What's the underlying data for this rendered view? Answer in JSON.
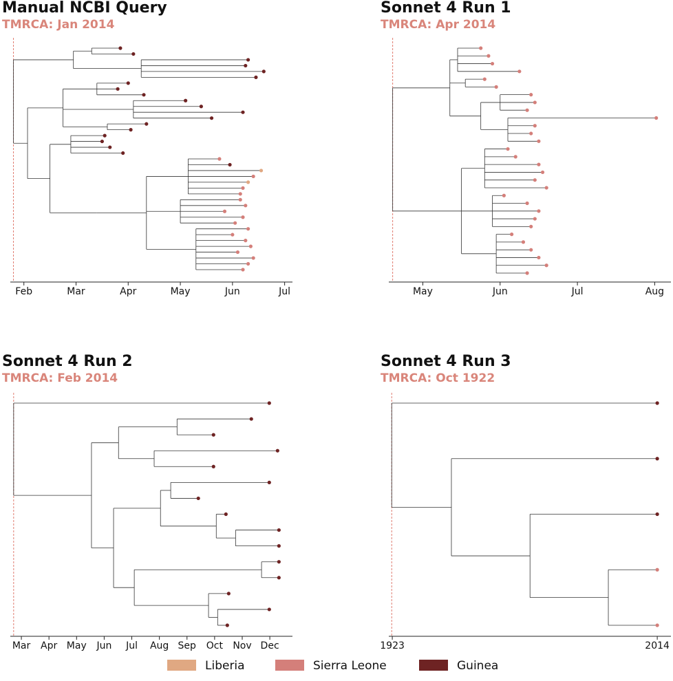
{
  "chart_data": [
    {
      "type": "tree",
      "title": "Manual NCBI Query",
      "subtitle": "TMRCA: Jan 2014",
      "xlim": [
        1.74,
        7.15
      ],
      "xticks": [
        {
          "value": 2,
          "label": "Feb"
        },
        {
          "value": 3,
          "label": "Mar"
        },
        {
          "value": 4,
          "label": "Apr"
        },
        {
          "value": 5,
          "label": "May"
        },
        {
          "value": 6,
          "label": "Jun"
        },
        {
          "value": 7,
          "label": "Jul"
        }
      ],
      "tree": {
        "t": 1.8,
        "c": [
          {
            "t": 2.95,
            "c": [
              {
                "t": 3.3,
                "c": [
                  {
                    "t": 3.85,
                    "g": "Guinea"
                  },
                  {
                    "t": 4.1,
                    "g": "Guinea"
                  }
                ]
              },
              {
                "t": 4.25,
                "c": [
                  {
                    "t": 6.3,
                    "g": "Guinea"
                  },
                  {
                    "t": 6.25,
                    "g": "Guinea"
                  },
                  {
                    "t": 6.6,
                    "g": "Guinea"
                  },
                  {
                    "t": 6.45,
                    "g": "Guinea"
                  }
                ]
              }
            ]
          },
          {
            "t": 2.07,
            "c": [
              {
                "t": 2.75,
                "c": [
                  {
                    "t": 3.4,
                    "c": [
                      {
                        "t": 4.0,
                        "g": "Guinea"
                      },
                      {
                        "t": 3.8,
                        "g": "Guinea"
                      },
                      {
                        "t": 4.3,
                        "g": "Guinea"
                      }
                    ]
                  },
                  {
                    "t": 4.1,
                    "c": [
                      {
                        "t": 5.1,
                        "g": "Guinea"
                      },
                      {
                        "t": 5.4,
                        "g": "Guinea"
                      },
                      {
                        "t": 6.2,
                        "g": "Guinea"
                      },
                      {
                        "t": 5.6,
                        "g": "Guinea"
                      }
                    ]
                  },
                  {
                    "t": 3.6,
                    "c": [
                      {
                        "t": 4.35,
                        "g": "Guinea"
                      },
                      {
                        "t": 4.05,
                        "g": "Guinea"
                      }
                    ]
                  }
                ]
              },
              {
                "t": 2.5,
                "c": [
                  {
                    "t": 2.9,
                    "c": [
                      {
                        "t": 3.55,
                        "g": "Guinea"
                      },
                      {
                        "t": 3.5,
                        "g": "Guinea"
                      },
                      {
                        "t": 3.65,
                        "g": "Guinea"
                      },
                      {
                        "t": 3.9,
                        "g": "Guinea"
                      }
                    ]
                  },
                  {
                    "t": 3.4,
                    "c": [
                      {
                        "t": 4.35,
                        "c": [
                          {
                            "t": 5.15,
                            "c": [
                              {
                                "t": 5.75,
                                "g": "Sierra Leone"
                              },
                              {
                                "t": 5.95,
                                "g": "Guinea"
                              },
                              {
                                "t": 6.55,
                                "g": "Liberia"
                              },
                              {
                                "t": 6.4,
                                "g": "Sierra Leone"
                              },
                              {
                                "t": 6.3,
                                "g": "Liberia"
                              },
                              {
                                "t": 6.2,
                                "g": "Sierra Leone"
                              },
                              {
                                "t": 6.15,
                                "g": "Sierra Leone"
                              }
                            ]
                          },
                          {
                            "t": 5.0,
                            "c": [
                              {
                                "t": 6.15,
                                "g": "Sierra Leone"
                              },
                              {
                                "t": 6.25,
                                "g": "Sierra Leone"
                              },
                              {
                                "t": 5.85,
                                "g": "Sierra Leone"
                              },
                              {
                                "t": 6.2,
                                "g": "Sierra Leone"
                              },
                              {
                                "t": 6.05,
                                "g": "Sierra Leone"
                              }
                            ]
                          },
                          {
                            "t": 5.3,
                            "c": [
                              {
                                "t": 6.3,
                                "g": "Sierra Leone"
                              },
                              {
                                "t": 6.0,
                                "g": "Sierra Leone"
                              },
                              {
                                "t": 6.25,
                                "g": "Sierra Leone"
                              },
                              {
                                "t": 6.35,
                                "g": "Sierra Leone"
                              },
                              {
                                "t": 6.1,
                                "g": "Sierra Leone"
                              },
                              {
                                "t": 6.4,
                                "g": "Sierra Leone"
                              },
                              {
                                "t": 6.3,
                                "g": "Sierra Leone"
                              },
                              {
                                "t": 6.2,
                                "g": "Sierra Leone"
                              }
                            ]
                          }
                        ]
                      }
                    ]
                  }
                ]
              }
            ]
          }
        ]
      }
    },
    {
      "type": "tree",
      "title": "Sonnet 4 Run 1",
      "subtitle": "TMRCA: Apr 2014",
      "xlim": [
        4.56,
        8.21
      ],
      "xticks": [
        {
          "value": 5,
          "label": "May"
        },
        {
          "value": 6,
          "label": "Jun"
        },
        {
          "value": 7,
          "label": "Jul"
        },
        {
          "value": 8,
          "label": "Aug"
        }
      ],
      "tree": {
        "t": 4.61,
        "c": [
          {
            "t": 5.35,
            "c": [
              {
                "t": 5.45,
                "c": [
                  {
                    "t": 5.75,
                    "g": "Sierra Leone"
                  },
                  {
                    "t": 5.85,
                    "g": "Sierra Leone"
                  },
                  {
                    "t": 5.9,
                    "g": "Sierra Leone"
                  },
                  {
                    "t": 6.25,
                    "g": "Sierra Leone"
                  }
                ]
              },
              {
                "t": 5.55,
                "c": [
                  {
                    "t": 5.8,
                    "g": "Sierra Leone"
                  },
                  {
                    "t": 5.95,
                    "g": "Sierra Leone"
                  }
                ]
              },
              {
                "t": 5.75,
                "c": [
                  {
                    "t": 6.0,
                    "c": [
                      {
                        "t": 6.4,
                        "g": "Sierra Leone"
                      },
                      {
                        "t": 6.45,
                        "g": "Sierra Leone"
                      },
                      {
                        "t": 6.35,
                        "g": "Sierra Leone"
                      }
                    ]
                  },
                  {
                    "t": 6.1,
                    "c": [
                      {
                        "t": 8.02,
                        "g": "Sierra Leone"
                      },
                      {
                        "t": 6.45,
                        "g": "Sierra Leone"
                      },
                      {
                        "t": 6.4,
                        "g": "Sierra Leone"
                      },
                      {
                        "t": 6.5,
                        "g": "Sierra Leone"
                      }
                    ]
                  }
                ]
              }
            ]
          },
          {
            "t": 5.5,
            "c": [
              {
                "t": 5.8,
                "c": [
                  {
                    "t": 6.1,
                    "g": "Sierra Leone"
                  },
                  {
                    "t": 6.2,
                    "g": "Sierra Leone"
                  },
                  {
                    "t": 6.5,
                    "g": "Sierra Leone"
                  },
                  {
                    "t": 6.55,
                    "g": "Sierra Leone"
                  },
                  {
                    "t": 6.45,
                    "g": "Sierra Leone"
                  },
                  {
                    "t": 6.6,
                    "g": "Sierra Leone"
                  }
                ]
              },
              {
                "t": 5.9,
                "c": [
                  {
                    "t": 6.05,
                    "g": "Sierra Leone"
                  },
                  {
                    "t": 6.35,
                    "g": "Sierra Leone"
                  },
                  {
                    "t": 6.5,
                    "g": "Sierra Leone"
                  },
                  {
                    "t": 6.45,
                    "g": "Sierra Leone"
                  },
                  {
                    "t": 6.4,
                    "g": "Sierra Leone"
                  }
                ]
              },
              {
                "t": 5.95,
                "c": [
                  {
                    "t": 6.15,
                    "g": "Sierra Leone"
                  },
                  {
                    "t": 6.3,
                    "g": "Sierra Leone"
                  },
                  {
                    "t": 6.4,
                    "g": "Sierra Leone"
                  },
                  {
                    "t": 6.5,
                    "g": "Sierra Leone"
                  },
                  {
                    "t": 6.6,
                    "g": "Sierra Leone"
                  },
                  {
                    "t": 6.35,
                    "g": "Sierra Leone"
                  }
                ]
              }
            ]
          }
        ]
      }
    },
    {
      "type": "tree",
      "title": "Sonnet 4 Run 2",
      "subtitle": "TMRCA: Feb 2014",
      "xlim": [
        2.6,
        12.82
      ],
      "xticks": [
        {
          "value": 3,
          "label": "Mar"
        },
        {
          "value": 4,
          "label": "Apr"
        },
        {
          "value": 5,
          "label": "May"
        },
        {
          "value": 6,
          "label": "Jun"
        },
        {
          "value": 7,
          "label": "Jul"
        },
        {
          "value": 8,
          "label": "Aug"
        },
        {
          "value": 9,
          "label": "Sep"
        },
        {
          "value": 10,
          "label": "Oct"
        },
        {
          "value": 11,
          "label": "Nov"
        },
        {
          "value": 12,
          "label": "Dec"
        }
      ],
      "tree": {
        "t": 2.72,
        "c": [
          {
            "t": 11.98,
            "g": "Guinea"
          },
          {
            "t": 5.54,
            "c": [
              {
                "t": 6.52,
                "c": [
                  {
                    "t": 8.64,
                    "c": [
                      {
                        "t": 11.33,
                        "g": "Guinea"
                      },
                      {
                        "t": 9.96,
                        "g": "Guinea"
                      }
                    ]
                  },
                  {
                    "t": 7.81,
                    "c": [
                      {
                        "t": 12.28,
                        "g": "Guinea"
                      },
                      {
                        "t": 9.96,
                        "g": "Guinea"
                      }
                    ]
                  }
                ]
              },
              {
                "t": 6.34,
                "c": [
                  {
                    "t": 8.04,
                    "c": [
                      {
                        "t": 8.41,
                        "c": [
                          {
                            "t": 11.98,
                            "g": "Guinea"
                          },
                          {
                            "t": 9.41,
                            "g": "Guinea"
                          }
                        ]
                      },
                      {
                        "t": 10.06,
                        "c": [
                          {
                            "t": 10.41,
                            "g": "Guinea"
                          },
                          {
                            "t": 10.76,
                            "c": [
                              {
                                "t": 12.33,
                                "g": "Guinea"
                              },
                              {
                                "t": 12.33,
                                "g": "Guinea"
                              }
                            ]
                          }
                        ]
                      }
                    ]
                  },
                  {
                    "t": 7.09,
                    "c": [
                      {
                        "t": 11.7,
                        "c": [
                          {
                            "t": 12.33,
                            "g": "Guinea"
                          },
                          {
                            "t": 12.33,
                            "g": "Guinea"
                          }
                        ]
                      },
                      {
                        "t": 9.78,
                        "c": [
                          {
                            "t": 10.51,
                            "g": "Guinea"
                          },
                          {
                            "t": 10.11,
                            "c": [
                              {
                                "t": 11.98,
                                "g": "Guinea"
                              },
                              {
                                "t": 10.46,
                                "g": "Guinea"
                              }
                            ]
                          }
                        ]
                      }
                    ]
                  }
                ]
              }
            ]
          }
        ]
      }
    },
    {
      "type": "tree",
      "title": "Sonnet 4 Run 3",
      "subtitle": "TMRCA: Oct 1922",
      "xlim": [
        1921.8,
        2018.7
      ],
      "xticks": [
        1923,
        2014
      ],
      "tree": {
        "t": 1922.8,
        "c": [
          {
            "t": 2014,
            "g": "Guinea"
          },
          {
            "t": 1943.3,
            "c": [
              {
                "t": 2014,
                "g": "Guinea"
              },
              {
                "t": 1970.3,
                "c": [
                  {
                    "t": 2014,
                    "g": "Guinea"
                  },
                  {
                    "t": 1997.2,
                    "c": [
                      {
                        "t": 2014,
                        "g": "Sierra Leone"
                      },
                      {
                        "t": 2014,
                        "g": "Sierra Leone"
                      }
                    ]
                  }
                ]
              }
            ]
          }
        ]
      }
    }
  ],
  "legend": [
    {
      "name": "Liberia",
      "color": "#e0a882"
    },
    {
      "name": "Sierra Leone",
      "color": "#d47f7a"
    },
    {
      "name": "Guinea",
      "color": "#6e2323"
    }
  ]
}
